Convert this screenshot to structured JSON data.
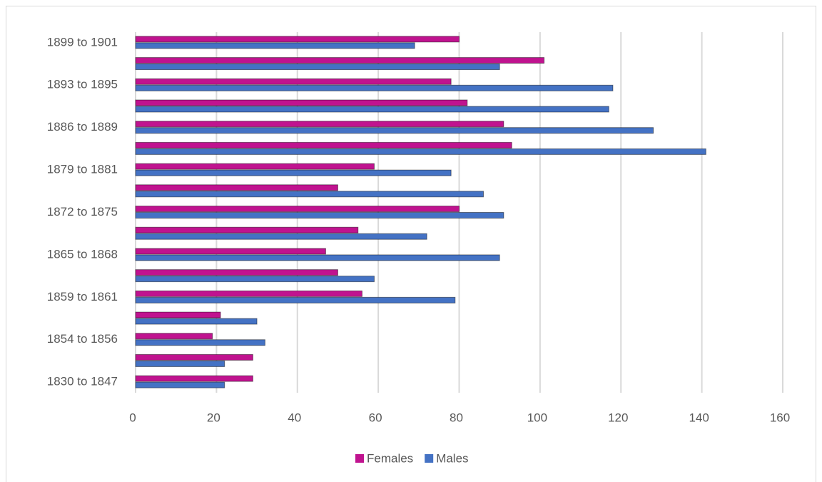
{
  "chart_data": {
    "type": "bar",
    "orientation": "horizontal",
    "categories": [
      "1830 to 1847",
      null,
      "1854 to 1856",
      null,
      "1859 to 1861",
      null,
      "1865 to 1868",
      null,
      "1872 to 1875",
      null,
      "1879 to 1881",
      null,
      "1886 to 1889",
      null,
      "1893 to 1895",
      null,
      "1899 to 1901"
    ],
    "series": [
      {
        "name": "Females",
        "color": "#c0138f",
        "values": [
          29,
          29,
          19,
          21,
          56,
          50,
          47,
          55,
          80,
          50,
          59,
          93,
          91,
          82,
          78,
          101,
          80
        ]
      },
      {
        "name": "Males",
        "color": "#4472c4",
        "values": [
          22,
          22,
          32,
          30,
          79,
          59,
          90,
          72,
          91,
          86,
          78,
          141,
          128,
          117,
          118,
          90,
          69
        ]
      }
    ],
    "xlim": [
      0,
      160
    ],
    "xticks": [
      0,
      20,
      40,
      60,
      80,
      100,
      120,
      140,
      160
    ],
    "grid": true,
    "legend": "bottom"
  }
}
